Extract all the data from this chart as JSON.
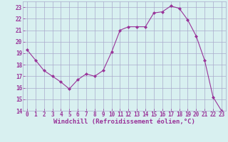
{
  "x": [
    0,
    1,
    2,
    3,
    4,
    5,
    6,
    7,
    8,
    9,
    10,
    11,
    12,
    13,
    14,
    15,
    16,
    17,
    18,
    19,
    20,
    21,
    22,
    23
  ],
  "y": [
    19.3,
    18.4,
    17.5,
    17.0,
    16.5,
    15.9,
    16.7,
    17.2,
    17.0,
    17.5,
    19.1,
    21.0,
    21.3,
    21.3,
    21.3,
    22.5,
    22.6,
    23.1,
    22.9,
    21.9,
    20.5,
    18.4,
    15.2,
    14.0
  ],
  "line_color": "#993399",
  "marker": "D",
  "marker_size": 2,
  "bg_color": "#d8f0f0",
  "grid_color": "#aaaacc",
  "xlabel": "Windchill (Refroidissement éolien,°C)",
  "xlabel_color": "#993399",
  "ylim": [
    14,
    23.5
  ],
  "xlim": [
    -0.5,
    23.5
  ],
  "yticks": [
    14,
    15,
    16,
    17,
    18,
    19,
    20,
    21,
    22,
    23
  ],
  "xticks": [
    0,
    1,
    2,
    3,
    4,
    5,
    6,
    7,
    8,
    9,
    10,
    11,
    12,
    13,
    14,
    15,
    16,
    17,
    18,
    19,
    20,
    21,
    22,
    23
  ],
  "tick_color": "#993399",
  "tick_fontsize": 5.5,
  "xlabel_fontsize": 6.5
}
